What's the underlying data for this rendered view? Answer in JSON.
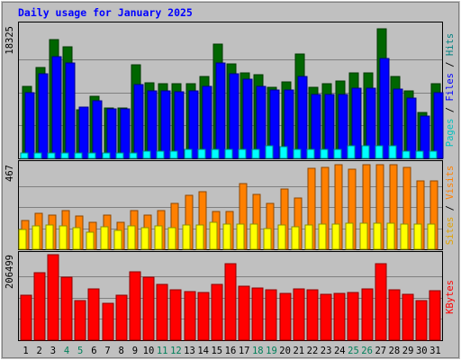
{
  "chart_data": {
    "type": "bar",
    "title": "Daily usage for January 2025",
    "categories": [
      "1",
      "2",
      "3",
      "4",
      "5",
      "6",
      "7",
      "8",
      "9",
      "10",
      "11",
      "12",
      "13",
      "14",
      "15",
      "16",
      "17",
      "18",
      "19",
      "20",
      "21",
      "22",
      "23",
      "24",
      "25",
      "26",
      "27",
      "28",
      "29",
      "30",
      "31"
    ],
    "weekend_days": [
      "4",
      "5",
      "11",
      "12",
      "18",
      "19",
      "25",
      "26"
    ],
    "panels": [
      {
        "id": "hits_files_pages",
        "ymax_label": "18325",
        "ymax": 18325,
        "series": [
          {
            "name": "Hits",
            "color": "#006600",
            "values": [
              10000,
              12550,
              16400,
              15500,
              6750,
              8650,
              6950,
              6950,
              12950,
              10450,
              10400,
              10400,
              10300,
              11400,
              15850,
              13150,
              11800,
              11650,
              9800,
              10600,
              14500,
              9800,
              10400,
              10700,
              11850,
              11850,
              17900,
              11300,
              9300,
              6300,
              10400
            ]
          },
          {
            "name": "Files",
            "color": "#0000ff",
            "values": [
              9050,
              11700,
              14100,
              13200,
              7100,
              8000,
              6900,
              6800,
              10250,
              9300,
              9300,
              9250,
              9300,
              9950,
              13250,
              11700,
              11000,
              10000,
              9500,
              9450,
              11300,
              8900,
              8900,
              8900,
              9700,
              9700,
              13800,
              9550,
              8300,
              5800,
              9100
            ]
          },
          {
            "name": "Pages",
            "color": "#00ffff",
            "values": [
              700,
              700,
              700,
              700,
              700,
              700,
              700,
              700,
              700,
              1000,
              1000,
              1000,
              1300,
              1300,
              1300,
              1300,
              1300,
              1300,
              1700,
              1600,
              1300,
              1300,
              1300,
              1300,
              1700,
              1700,
              1700,
              1700,
              1000,
              1000,
              1000
            ]
          }
        ]
      },
      {
        "id": "visits_sites",
        "ymax_label": "467",
        "ymax": 467,
        "series": [
          {
            "name": "Visits",
            "color": "#ff8000",
            "values": [
              160,
              200,
              190,
              215,
              185,
              150,
              190,
              150,
              215,
              190,
              215,
              255,
              300,
              320,
              210,
              210,
              365,
              305,
              255,
              335,
              285,
              445,
              450,
              465,
              440,
              465,
              465,
              465,
              450,
              380,
              380
            ]
          },
          {
            "name": "Sites",
            "color": "#ffff00",
            "values": [
              110,
              130,
              135,
              130,
              120,
              95,
              125,
              105,
              130,
              120,
              130,
              120,
              135,
              135,
              150,
              140,
              140,
              140,
              115,
              135,
              125,
              135,
              140,
              140,
              145,
              145,
              145,
              145,
              140,
              140,
              140
            ]
          }
        ]
      },
      {
        "id": "kbytes",
        "ymax_label": "206499",
        "ymax": 206499,
        "series": [
          {
            "name": "KBytes",
            "color": "#ff0000",
            "values": [
              107800,
              163400,
              206499,
              151200,
              95800,
              123400,
              89800,
              107800,
              165600,
              151200,
              134900,
              122300,
              117000,
              116200,
              134300,
              184600,
              131100,
              126600,
              120700,
              112100,
              124800,
              120800,
              110600,
              113700,
              114600,
              123000,
              183700,
              122400,
              111900,
              96500,
              119800
            ]
          }
        ]
      }
    ],
    "background_color": "#c0c0c0",
    "grid": true
  }
}
